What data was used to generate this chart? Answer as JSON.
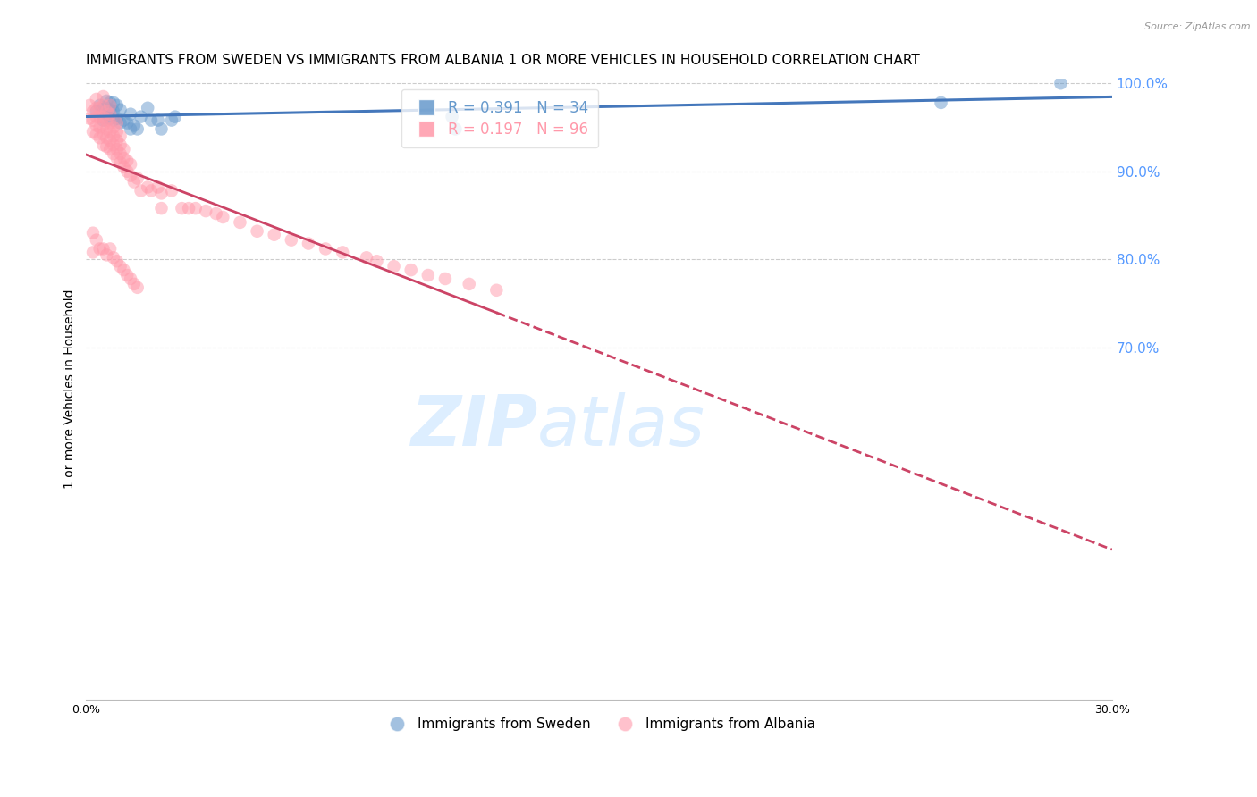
{
  "title": "IMMIGRANTS FROM SWEDEN VS IMMIGRANTS FROM ALBANIA 1 OR MORE VEHICLES IN HOUSEHOLD CORRELATION CHART",
  "source": "Source: ZipAtlas.com",
  "ylabel": "1 or more Vehicles in Household",
  "xlim": [
    0.0,
    0.3
  ],
  "ylim": [
    0.3,
    1.005
  ],
  "xticks": [
    0.0,
    0.05,
    0.1,
    0.15,
    0.2,
    0.25,
    0.3
  ],
  "xticklabels": [
    "0.0%",
    "",
    "",
    "",
    "",
    "",
    "30.0%"
  ],
  "yticks_right": [
    1.0,
    0.9,
    0.8,
    0.7
  ],
  "ytick_right_labels": [
    "100.0%",
    "90.0%",
    "80.0%",
    "70.0%"
  ],
  "sweden_color": "#6699CC",
  "albania_color": "#FF99AA",
  "sweden_line_color": "#4477BB",
  "albania_line_color": "#CC4466",
  "sweden_R": 0.391,
  "sweden_N": 34,
  "albania_R": 0.197,
  "albania_N": 96,
  "legend_sweden": "Immigrants from Sweden",
  "legend_albania": "Immigrants from Albania",
  "watermark_zip": "ZIP",
  "watermark_atlas": "atlas",
  "grid_color": "#CCCCCC",
  "right_axis_color": "#5599FF",
  "title_fontsize": 11,
  "axis_label_fontsize": 10,
  "tick_fontsize": 9,
  "legend_fontsize": 10,
  "watermark_color": "#DDEEFF",
  "watermark_fontsize": 56,
  "sweden_x": [
    0.003,
    0.004,
    0.005,
    0.005,
    0.006,
    0.006,
    0.006,
    0.007,
    0.007,
    0.007,
    0.008,
    0.008,
    0.008,
    0.009,
    0.009,
    0.01,
    0.01,
    0.011,
    0.012,
    0.013,
    0.013,
    0.014,
    0.015,
    0.016,
    0.018,
    0.019,
    0.021,
    0.022,
    0.025,
    0.026,
    0.107,
    0.108,
    0.25,
    0.285
  ],
  "sweden_y": [
    0.968,
    0.975,
    0.958,
    0.972,
    0.965,
    0.972,
    0.98,
    0.96,
    0.97,
    0.978,
    0.958,
    0.968,
    0.978,
    0.96,
    0.975,
    0.955,
    0.97,
    0.958,
    0.955,
    0.948,
    0.965,
    0.952,
    0.948,
    0.962,
    0.972,
    0.958,
    0.958,
    0.948,
    0.958,
    0.962,
    0.962,
    0.948,
    0.978,
    1.0
  ],
  "albania_x": [
    0.001,
    0.001,
    0.002,
    0.002,
    0.002,
    0.003,
    0.003,
    0.003,
    0.003,
    0.003,
    0.004,
    0.004,
    0.004,
    0.004,
    0.005,
    0.005,
    0.005,
    0.005,
    0.005,
    0.005,
    0.006,
    0.006,
    0.006,
    0.006,
    0.006,
    0.007,
    0.007,
    0.007,
    0.007,
    0.007,
    0.007,
    0.008,
    0.008,
    0.008,
    0.008,
    0.009,
    0.009,
    0.009,
    0.009,
    0.009,
    0.01,
    0.01,
    0.01,
    0.01,
    0.011,
    0.011,
    0.011,
    0.012,
    0.012,
    0.013,
    0.013,
    0.014,
    0.015,
    0.016,
    0.018,
    0.019,
    0.021,
    0.022,
    0.025,
    0.028,
    0.03,
    0.032,
    0.035,
    0.038,
    0.04,
    0.045,
    0.05,
    0.055,
    0.06,
    0.065,
    0.07,
    0.075,
    0.082,
    0.085,
    0.09,
    0.095,
    0.1,
    0.105,
    0.112,
    0.12,
    0.002,
    0.002,
    0.003,
    0.004,
    0.005,
    0.006,
    0.007,
    0.008,
    0.009,
    0.01,
    0.011,
    0.012,
    0.013,
    0.014,
    0.015,
    0.022
  ],
  "albania_y": [
    0.96,
    0.975,
    0.945,
    0.958,
    0.968,
    0.942,
    0.952,
    0.962,
    0.972,
    0.982,
    0.938,
    0.95,
    0.962,
    0.972,
    0.93,
    0.942,
    0.952,
    0.962,
    0.975,
    0.985,
    0.928,
    0.938,
    0.948,
    0.958,
    0.968,
    0.925,
    0.935,
    0.945,
    0.955,
    0.965,
    0.975,
    0.92,
    0.93,
    0.94,
    0.95,
    0.915,
    0.925,
    0.935,
    0.945,
    0.955,
    0.91,
    0.92,
    0.93,
    0.94,
    0.905,
    0.915,
    0.925,
    0.9,
    0.912,
    0.895,
    0.908,
    0.888,
    0.892,
    0.878,
    0.882,
    0.878,
    0.882,
    0.875,
    0.878,
    0.858,
    0.858,
    0.858,
    0.855,
    0.852,
    0.848,
    0.842,
    0.832,
    0.828,
    0.822,
    0.818,
    0.812,
    0.808,
    0.802,
    0.798,
    0.792,
    0.788,
    0.782,
    0.778,
    0.772,
    0.765,
    0.83,
    0.808,
    0.822,
    0.812,
    0.812,
    0.805,
    0.812,
    0.802,
    0.798,
    0.792,
    0.788,
    0.782,
    0.778,
    0.772,
    0.768,
    0.858
  ]
}
